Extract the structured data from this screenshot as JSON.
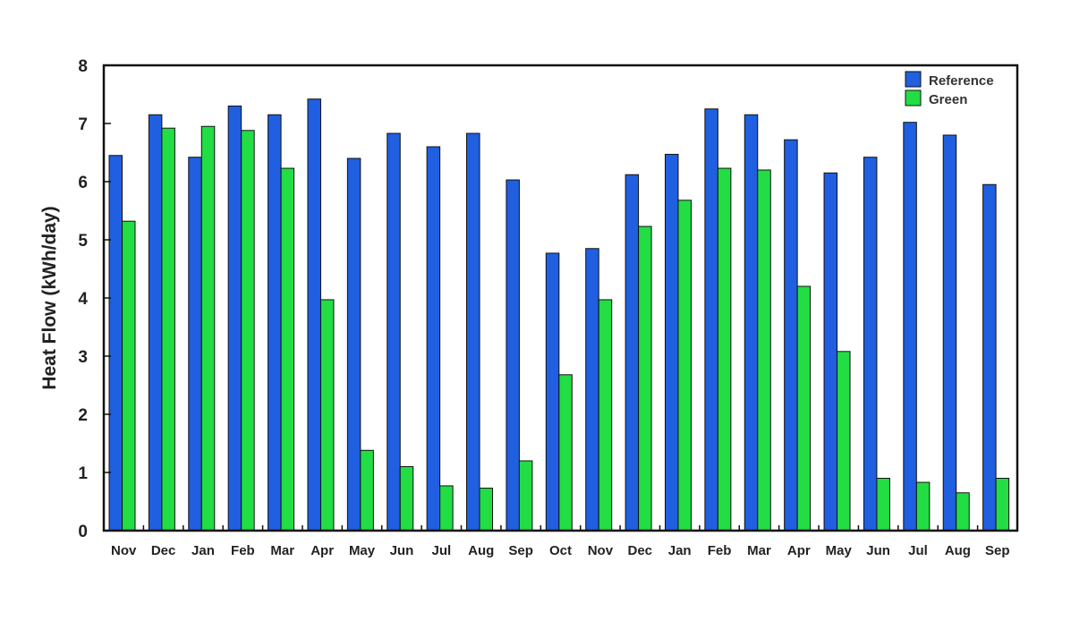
{
  "chart_data": {
    "type": "bar",
    "title": "",
    "xlabel": "",
    "ylabel": "Heat Flow (kWh/day)",
    "ylim": [
      0,
      8
    ],
    "yticks": [
      "0",
      "1",
      "2",
      "3",
      "4",
      "5",
      "6",
      "7",
      "8"
    ],
    "categories": [
      "Nov",
      "Dec",
      "Jan",
      "Feb",
      "Mar",
      "Apr",
      "May",
      "Jun",
      "Jul",
      "Aug",
      "Sep",
      "Oct",
      "Nov",
      "Dec",
      "Jan",
      "Feb",
      "Mar",
      "Apr",
      "May",
      "Jun",
      "Jul",
      "Aug",
      "Sep"
    ],
    "legend_position": "top-right",
    "grid": false,
    "series": [
      {
        "name": "Reference",
        "color": "#1f5fe0",
        "values": [
          6.45,
          7.15,
          6.42,
          7.3,
          7.15,
          7.42,
          6.4,
          6.83,
          6.6,
          6.83,
          6.03,
          4.77,
          4.85,
          6.12,
          6.47,
          7.25,
          7.15,
          6.72,
          6.15,
          6.42,
          7.02,
          6.8,
          5.95
        ]
      },
      {
        "name": "Green",
        "color": "#22dd44",
        "values": [
          5.32,
          6.92,
          6.95,
          6.88,
          6.23,
          3.97,
          1.38,
          1.1,
          0.77,
          0.73,
          1.2,
          2.68,
          3.97,
          5.23,
          5.68,
          6.23,
          6.2,
          4.2,
          3.08,
          0.9,
          0.83,
          0.65,
          0.9
        ]
      }
    ]
  }
}
